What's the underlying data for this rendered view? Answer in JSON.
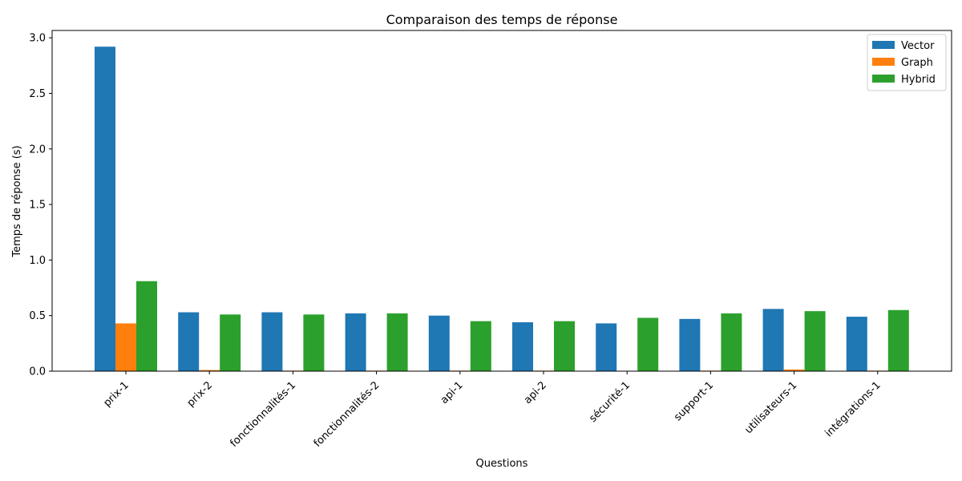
{
  "chart_data": {
    "type": "bar",
    "title": "Comparaison des temps de réponse",
    "xlabel": "Questions",
    "ylabel": "Temps de réponse (s)",
    "ylim": [
      0,
      3.066
    ],
    "yticks": [
      "0.0",
      "0.5",
      "1.0",
      "1.5",
      "2.0",
      "2.5",
      "3.0"
    ],
    "categories": [
      "prix-1",
      "prix-2",
      "fonctionnalités-1",
      "fonctionnalités-2",
      "api-1",
      "api-2",
      "sécurité-1",
      "support-1",
      "utilisateurs-1",
      "intégrations-1"
    ],
    "series": [
      {
        "name": "Vector",
        "color": "#1f77b4",
        "values": [
          2.92,
          0.53,
          0.53,
          0.52,
          0.5,
          0.44,
          0.43,
          0.47,
          0.56,
          0.49
        ]
      },
      {
        "name": "Graph",
        "color": "#ff7f0e",
        "values": [
          0.43,
          0.01,
          0.005,
          0.005,
          0.005,
          0.005,
          0.003,
          0.005,
          0.015,
          0.005
        ]
      },
      {
        "name": "Hybrid",
        "color": "#2ca02c",
        "values": [
          0.81,
          0.51,
          0.51,
          0.52,
          0.45,
          0.45,
          0.48,
          0.52,
          0.54,
          0.55
        ]
      }
    ],
    "legend_position": "top-right",
    "grid": false
  }
}
